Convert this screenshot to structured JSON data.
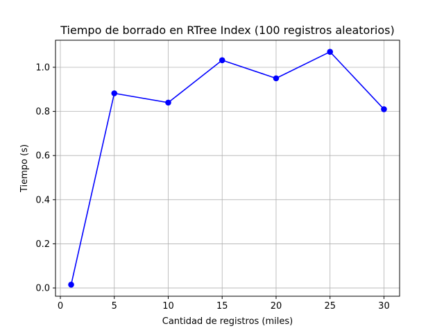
{
  "chart_data": {
    "type": "line",
    "title": "Tiempo de borrado en RTree Index (100 registros aleatorios)",
    "xlabel": "Cantidad de registros (miles)",
    "ylabel": "Tiempo (s)",
    "xlim": [
      -0.45,
      31.45
    ],
    "ylim": [
      -0.0375,
      1.1225
    ],
    "xticks": [
      0,
      5,
      10,
      15,
      20,
      25,
      30
    ],
    "yticks": [
      0.0,
      0.2,
      0.4,
      0.6,
      0.8,
      1.0
    ],
    "xtick_labels": [
      "0",
      "5",
      "10",
      "15",
      "20",
      "25",
      "30"
    ],
    "ytick_labels": [
      "0.0",
      "0.2",
      "0.4",
      "0.6",
      "0.8",
      "1.0"
    ],
    "grid": true,
    "legend": false,
    "series": [
      {
        "color": "#0000ff",
        "marker": "circle",
        "x": [
          1,
          5,
          10,
          15,
          20,
          25,
          30
        ],
        "y": [
          0.015,
          0.882,
          0.84,
          1.032,
          0.95,
          1.07,
          0.81
        ]
      }
    ]
  }
}
